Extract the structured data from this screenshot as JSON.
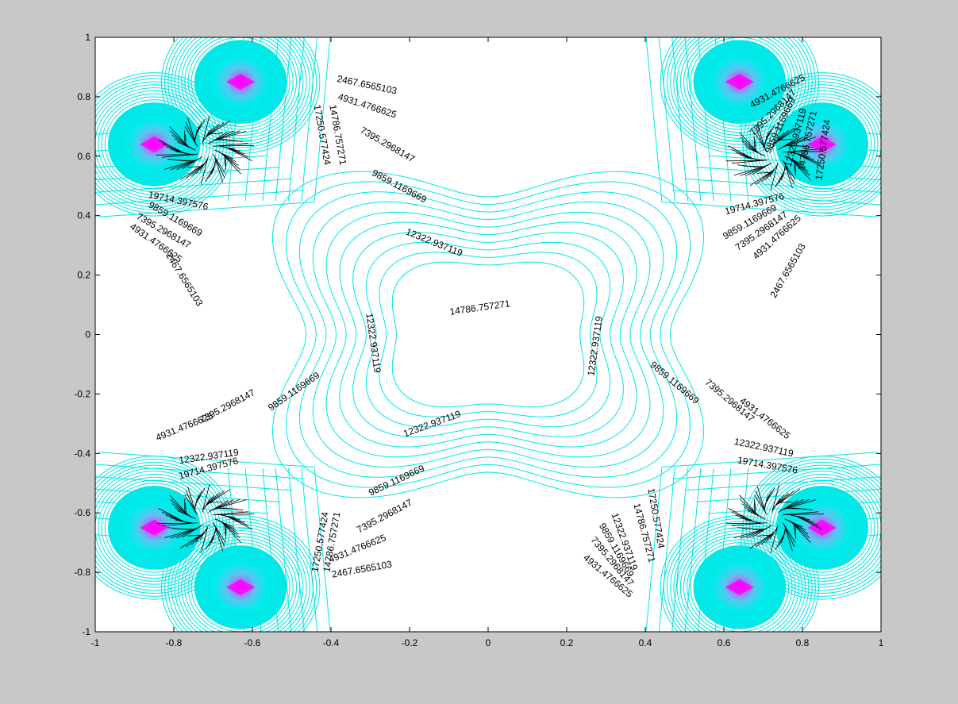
{
  "chart_data": {
    "type": "contour",
    "title": "",
    "xlabel": "",
    "ylabel": "",
    "xlim": [
      -1,
      1
    ],
    "ylim": [
      -1,
      1
    ],
    "x_ticks": [
      "-1",
      "-0.8",
      "-0.6",
      "-0.4",
      "-0.2",
      "0",
      "0.2",
      "0.4",
      "0.6",
      "0.8",
      "1"
    ],
    "y_ticks": [
      "1",
      "0.8",
      "0.6",
      "0.4",
      "0.2",
      "0",
      "-0.2",
      "-0.4",
      "-0.6",
      "-0.8",
      "-1"
    ],
    "grid": false,
    "legend": "none",
    "contour_levels": [
      "2467.6565103",
      "4931.4766625",
      "7395.2968147",
      "9859.1169669",
      "12322.937119",
      "14786.757271",
      "17250.577424",
      "19714.397576"
    ],
    "peaks": [
      {
        "x": -0.63,
        "y": 0.85
      },
      {
        "x": -0.85,
        "y": 0.64
      },
      {
        "x": 0.64,
        "y": 0.85
      },
      {
        "x": 0.85,
        "y": 0.64
      },
      {
        "x": -0.85,
        "y": -0.65
      },
      {
        "x": -0.63,
        "y": -0.85
      },
      {
        "x": 0.85,
        "y": -0.65
      },
      {
        "x": 0.64,
        "y": -0.85
      }
    ],
    "labels": [
      {
        "text": "2467.6565103",
        "x": -0.31,
        "y": 0.83,
        "angle": 12
      },
      {
        "text": "4931.4766625",
        "x": -0.31,
        "y": 0.76,
        "angle": 18
      },
      {
        "text": "7395.2968147",
        "x": -0.26,
        "y": 0.63,
        "angle": 30
      },
      {
        "text": "9859.1169669",
        "x": -0.23,
        "y": 0.49,
        "angle": 28
      },
      {
        "text": "12322.937119",
        "x": -0.14,
        "y": 0.3,
        "angle": 22
      },
      {
        "text": "14786.757271",
        "x": -0.39,
        "y": 0.67,
        "angle": 80
      },
      {
        "text": "17250.577424",
        "x": -0.43,
        "y": 0.67,
        "angle": 80
      },
      {
        "text": "19714.397576",
        "x": -0.79,
        "y": 0.44,
        "angle": 12
      },
      {
        "text": "9859.1169669",
        "x": -0.8,
        "y": 0.38,
        "angle": 30
      },
      {
        "text": "7395.2968147",
        "x": -0.83,
        "y": 0.34,
        "angle": 30
      },
      {
        "text": "4931.4766625",
        "x": -0.85,
        "y": 0.3,
        "angle": 35
      },
      {
        "text": "2467.6565103",
        "x": -0.78,
        "y": 0.18,
        "angle": 58
      },
      {
        "text": "12322.937119",
        "x": -0.3,
        "y": -0.03,
        "angle": 82
      },
      {
        "text": "14786.757271",
        "x": -0.02,
        "y": 0.08,
        "angle": -8
      },
      {
        "text": "12322.937119",
        "x": 0.28,
        "y": -0.04,
        "angle": -82
      },
      {
        "text": "4931.4766625",
        "x": 0.74,
        "y": 0.81,
        "angle": -28
      },
      {
        "text": "7395.2968147",
        "x": 0.73,
        "y": 0.74,
        "angle": -45
      },
      {
        "text": "9859.1169669",
        "x": 0.75,
        "y": 0.7,
        "angle": -65
      },
      {
        "text": "12322.937119",
        "x": 0.79,
        "y": 0.66,
        "angle": -75
      },
      {
        "text": "14786.757271",
        "x": 0.82,
        "y": 0.65,
        "angle": -78
      },
      {
        "text": "17250.577424",
        "x": 0.86,
        "y": 0.62,
        "angle": -82
      },
      {
        "text": "19714.397576",
        "x": 0.68,
        "y": 0.43,
        "angle": -15
      },
      {
        "text": "9859.1169669",
        "x": 0.67,
        "y": 0.37,
        "angle": -30
      },
      {
        "text": "7395.2968147",
        "x": 0.7,
        "y": 0.34,
        "angle": -35
      },
      {
        "text": "4931.4766625",
        "x": 0.74,
        "y": 0.32,
        "angle": -42
      },
      {
        "text": "2467.6565103",
        "x": 0.77,
        "y": 0.21,
        "angle": -60
      },
      {
        "text": "9859.1169669",
        "x": 0.47,
        "y": -0.17,
        "angle": 40
      },
      {
        "text": "7395.2968147",
        "x": 0.61,
        "y": -0.23,
        "angle": 40
      },
      {
        "text": "4931.4766625",
        "x": 0.7,
        "y": -0.29,
        "angle": 38
      },
      {
        "text": "12322.937119",
        "x": 0.7,
        "y": -0.39,
        "angle": 12
      },
      {
        "text": "19714.397576",
        "x": 0.71,
        "y": -0.45,
        "angle": 10
      },
      {
        "text": "17250.577424",
        "x": -0.42,
        "y": -0.7,
        "angle": -80
      },
      {
        "text": "14786.757271",
        "x": -0.39,
        "y": -0.7,
        "angle": -80
      },
      {
        "text": "4931.4766625",
        "x": -0.77,
        "y": -0.32,
        "angle": -22
      },
      {
        "text": "7395.2968147",
        "x": -0.66,
        "y": -0.25,
        "angle": -28
      },
      {
        "text": "9859.1169669",
        "x": -0.49,
        "y": -0.2,
        "angle": -35
      },
      {
        "text": "12322.937119",
        "x": -0.71,
        "y": -0.42,
        "angle": -8
      },
      {
        "text": "19714.397576",
        "x": -0.71,
        "y": -0.46,
        "angle": -15
      },
      {
        "text": "12322.937119",
        "x": -0.14,
        "y": -0.31,
        "angle": -20
      },
      {
        "text": "9859.1169669",
        "x": -0.23,
        "y": -0.5,
        "angle": -25
      },
      {
        "text": "7395.2968147",
        "x": -0.26,
        "y": -0.62,
        "angle": -28
      },
      {
        "text": "4931.4766625",
        "x": -0.33,
        "y": -0.73,
        "angle": -22
      },
      {
        "text": "2467.6565103",
        "x": -0.32,
        "y": -0.8,
        "angle": -10
      },
      {
        "text": "17250.577424",
        "x": 0.42,
        "y": -0.62,
        "angle": 80
      },
      {
        "text": "14786.757271",
        "x": 0.39,
        "y": -0.67,
        "angle": 75
      },
      {
        "text": "12322.937119",
        "x": 0.34,
        "y": -0.7,
        "angle": 70
      },
      {
        "text": "9859.1169669",
        "x": 0.32,
        "y": -0.73,
        "angle": 60
      },
      {
        "text": "7395.2968147",
        "x": 0.31,
        "y": -0.77,
        "angle": 50
      },
      {
        "text": "4931.4766625",
        "x": 0.3,
        "y": -0.82,
        "angle": 40
      }
    ]
  },
  "colors": {
    "background": "#c8c8c8",
    "plot_background": "#ffffff",
    "contour_line": "#00e5e5",
    "dense_line": "#000000",
    "peak_center": "#ff00ff",
    "peak_mid": "#4fc3f7"
  }
}
